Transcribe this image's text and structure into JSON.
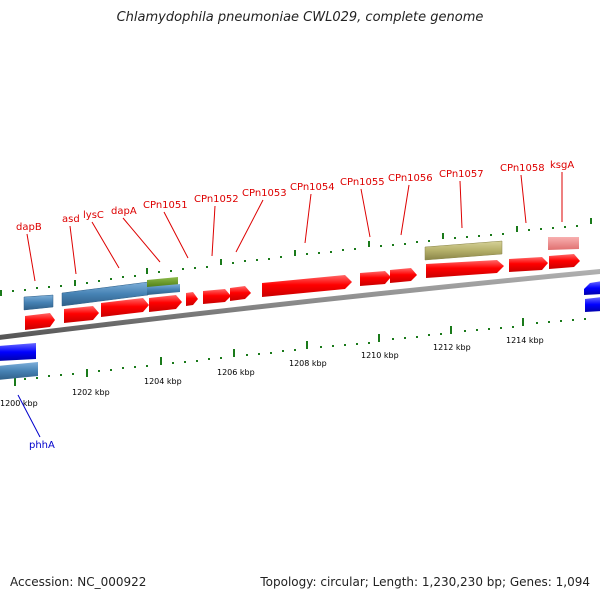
{
  "title": "Chlamydophila pneumoniae CWL029, complete genome",
  "footer": {
    "accession": "Accession: NC_000922",
    "summary": "Topology: circular; Length: 1,230,230 bp; Genes: 1,094"
  },
  "colors": {
    "cds": "#ff0000",
    "cds_label": "#dd0000",
    "blue_label": "#0000cc",
    "steelblue": "#4682b4",
    "olive": "#b5b06a",
    "green": "#5a8a1a",
    "pink": "#f08080",
    "blue": "#0000ff",
    "backbone": "#888888",
    "tick": "#1a7a1a"
  },
  "kbp_labels": [
    "1200 kbp",
    "1202 kbp",
    "1204 kbp",
    "1206 kbp",
    "1208 kbp",
    "1210 kbp",
    "1212 kbp",
    "1214 kbp"
  ],
  "gene_labels": [
    {
      "text": "dapB",
      "color": "red"
    },
    {
      "text": "asd",
      "color": "red"
    },
    {
      "text": "lysC",
      "color": "red"
    },
    {
      "text": "dapA",
      "color": "red"
    },
    {
      "text": "CPn1051",
      "color": "red"
    },
    {
      "text": "CPn1052",
      "color": "red"
    },
    {
      "text": "CPn1053",
      "color": "red"
    },
    {
      "text": "CPn1054",
      "color": "red"
    },
    {
      "text": "CPn1055",
      "color": "red"
    },
    {
      "text": "CPn1056",
      "color": "red"
    },
    {
      "text": "CPn1057",
      "color": "red"
    },
    {
      "text": "CPn1058",
      "color": "red"
    },
    {
      "text": "ksgA",
      "color": "red"
    },
    {
      "text": "phhA",
      "color": "blue"
    }
  ]
}
